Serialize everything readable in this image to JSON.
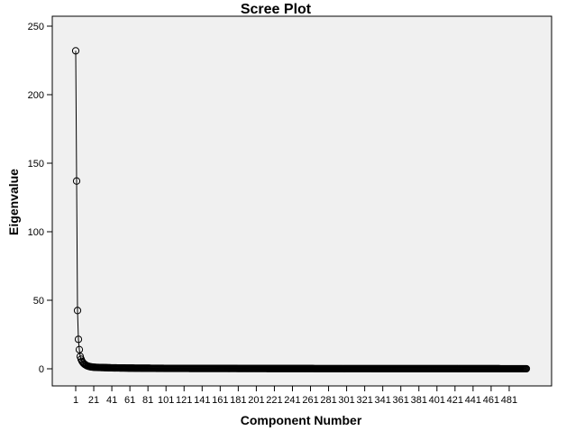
{
  "chart_data": {
    "type": "scatter",
    "title": "Scree Plot",
    "xlabel": "Component Number",
    "ylabel": "Eigenvalue",
    "xlim": [
      1,
      500
    ],
    "ylim": [
      0,
      250
    ],
    "x_ticks": [
      1,
      21,
      41,
      61,
      81,
      101,
      121,
      141,
      161,
      181,
      201,
      221,
      241,
      261,
      281,
      301,
      321,
      341,
      361,
      381,
      401,
      421,
      441,
      461,
      481
    ],
    "y_ticks": [
      0,
      50,
      100,
      150,
      200,
      250
    ],
    "grid": false,
    "series": [
      {
        "x": [
          1,
          2,
          3,
          4,
          5,
          6,
          7,
          8,
          9,
          10,
          11,
          12,
          13,
          14,
          15,
          16,
          17,
          18,
          19,
          20,
          25,
          30,
          40,
          50,
          60,
          80,
          100,
          150,
          200,
          250,
          300,
          350,
          400,
          450,
          500
        ],
        "values": [
          232,
          137,
          42.5,
          21.5,
          14,
          9,
          7,
          5.5,
          4.5,
          3.8,
          3.2,
          2.8,
          2.4,
          2.1,
          1.9,
          1.7,
          1.5,
          1.4,
          1.3,
          1.2,
          1.0,
          0.9,
          0.7,
          0.6,
          0.5,
          0.4,
          0.3,
          0.25,
          0.2,
          0.15,
          0.12,
          0.1,
          0.08,
          0.06,
          0.05
        ]
      }
    ],
    "colors": {
      "plot_background": "#f0f0f0",
      "line": "#000000",
      "marker": "#000000"
    }
  }
}
